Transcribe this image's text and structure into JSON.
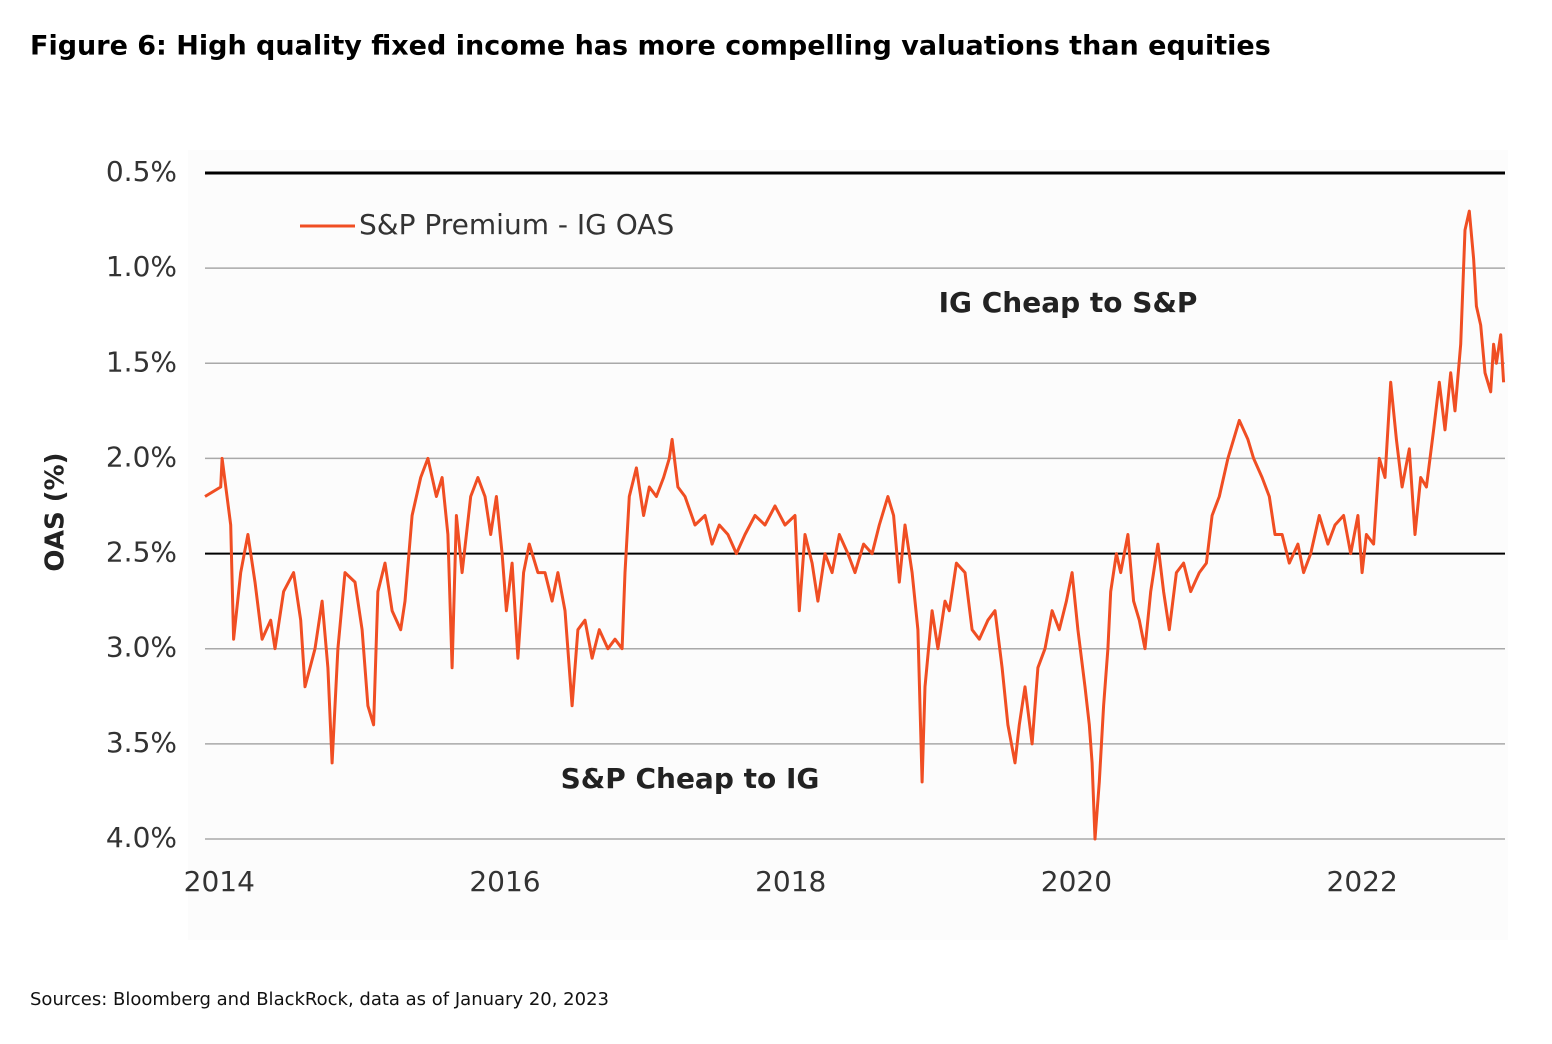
{
  "chart_data": {
    "type": "line",
    "title": "Figure 6: High quality fixed income has more compelling valuations than equities",
    "source": "Sources: Bloomberg and BlackRock, data as of January 20, 2023",
    "y_label": "OAS (%)",
    "annotations": [
      "IG Cheap to S&P",
      "S&P Cheap to IG"
    ],
    "xlim": [
      2013.9,
      2023.0
    ],
    "xticks": [
      2014,
      2016,
      2018,
      2020,
      2022
    ],
    "ylim": [
      0.5,
      4.0
    ],
    "y_inverted": true,
    "yticks": [
      {
        "value": 0.5,
        "label": "0.5%"
      },
      {
        "value": 1.0,
        "label": "1.0%"
      },
      {
        "value": 1.5,
        "label": "1.5%"
      },
      {
        "value": 2.0,
        "label": "2.0%"
      },
      {
        "value": 2.5,
        "label": "2.5%"
      },
      {
        "value": 3.0,
        "label": "3.0%"
      },
      {
        "value": 3.5,
        "label": "3.5%"
      },
      {
        "value": 4.0,
        "label": "4.0%"
      }
    ],
    "reference_line": 2.5,
    "grid": true,
    "legend": "top-left",
    "x": [
      2013.9,
      2014.01,
      2014.02,
      2014.08,
      2014.1,
      2014.15,
      2014.2,
      2014.25,
      2014.3,
      2014.36,
      2014.39,
      2014.45,
      2014.52,
      2014.57,
      2014.6,
      2014.67,
      2014.72,
      2014.76,
      2014.79,
      2014.83,
      2014.88,
      2014.95,
      2015.0,
      2015.04,
      2015.08,
      2015.11,
      2015.16,
      2015.21,
      2015.27,
      2015.3,
      2015.35,
      2015.41,
      2015.46,
      2015.52,
      2015.56,
      2015.6,
      2015.63,
      2015.66,
      2015.7,
      2015.76,
      2015.81,
      2015.86,
      2015.9,
      2015.94,
      2015.98,
      2016.01,
      2016.05,
      2016.09,
      2016.13,
      2016.17,
      2016.23,
      2016.28,
      2016.33,
      2016.37,
      2016.42,
      2016.47,
      2016.51,
      2016.56,
      2016.61,
      2016.66,
      2016.72,
      2016.77,
      2016.82,
      2016.84,
      2016.87,
      2016.92,
      2016.97,
      2017.01,
      2017.06,
      2017.11,
      2017.15,
      2017.17,
      2017.21,
      2017.26,
      2017.33,
      2017.4,
      2017.45,
      2017.5,
      2017.56,
      2017.62,
      2017.68,
      2017.75,
      2017.82,
      2017.89,
      2017.96,
      2018.03,
      2018.06,
      2018.1,
      2018.15,
      2018.19,
      2018.24,
      2018.29,
      2018.34,
      2018.4,
      2018.45,
      2018.51,
      2018.57,
      2018.62,
      2018.68,
      2018.72,
      2018.76,
      2018.8,
      2018.85,
      2018.89,
      2018.92,
      2018.94,
      2018.99,
      2019.03,
      2019.08,
      2019.11,
      2019.16,
      2019.22,
      2019.27,
      2019.32,
      2019.38,
      2019.43,
      2019.48,
      2019.52,
      2019.57,
      2019.6,
      2019.64,
      2019.69,
      2019.73,
      2019.78,
      2019.83,
      2019.88,
      2019.93,
      2019.97,
      2020.01,
      2020.06,
      2020.09,
      2020.11,
      2020.13,
      2020.16,
      2020.19,
      2020.22,
      2020.24,
      2020.28,
      2020.31,
      2020.36,
      2020.4,
      2020.44,
      2020.48,
      2020.52,
      2020.57,
      2020.61,
      2020.65,
      2020.7,
      2020.75,
      2020.8,
      2020.86,
      2020.91,
      2020.95,
      2021.0,
      2021.06,
      2021.1,
      2021.14,
      2021.2,
      2021.24,
      2021.3,
      2021.35,
      2021.39,
      2021.44,
      2021.49,
      2021.55,
      2021.59,
      2021.64,
      2021.7,
      2021.76,
      2021.81,
      2021.87,
      2021.92,
      2021.97,
      2022.0,
      2022.03,
      2022.08,
      2022.12,
      2022.16,
      2022.2,
      2022.24,
      2022.28,
      2022.33,
      2022.37,
      2022.41,
      2022.45,
      2022.5,
      2022.54,
      2022.58,
      2022.62,
      2022.65,
      2022.69,
      2022.72,
      2022.75,
      2022.78,
      2022.8,
      2022.83,
      2022.86,
      2022.9,
      2022.92,
      2022.94,
      2022.97,
      2022.99
    ],
    "series": [
      {
        "name": "S&P Premium - IG OAS",
        "color": "#f04e23",
        "values": [
          2.2,
          2.15,
          2.0,
          2.35,
          2.95,
          2.6,
          2.4,
          2.65,
          2.95,
          2.85,
          3.0,
          2.7,
          2.6,
          2.85,
          3.2,
          3.0,
          2.75,
          3.1,
          3.6,
          3.0,
          2.6,
          2.65,
          2.9,
          3.3,
          3.4,
          2.7,
          2.55,
          2.8,
          2.9,
          2.75,
          2.3,
          2.1,
          2.0,
          2.2,
          2.1,
          2.4,
          3.1,
          2.3,
          2.6,
          2.2,
          2.1,
          2.2,
          2.4,
          2.2,
          2.5,
          2.8,
          2.55,
          3.05,
          2.6,
          2.45,
          2.6,
          2.6,
          2.75,
          2.6,
          2.8,
          3.3,
          2.9,
          2.85,
          3.05,
          2.9,
          3.0,
          2.95,
          3.0,
          2.6,
          2.2,
          2.05,
          2.3,
          2.15,
          2.2,
          2.1,
          2.0,
          1.9,
          2.15,
          2.2,
          2.35,
          2.3,
          2.45,
          2.35,
          2.4,
          2.5,
          2.4,
          2.3,
          2.35,
          2.25,
          2.35,
          2.3,
          2.8,
          2.4,
          2.55,
          2.75,
          2.5,
          2.6,
          2.4,
          2.5,
          2.6,
          2.45,
          2.5,
          2.35,
          2.2,
          2.3,
          2.65,
          2.35,
          2.6,
          2.9,
          3.7,
          3.2,
          2.8,
          3.0,
          2.75,
          2.8,
          2.55,
          2.6,
          2.9,
          2.95,
          2.85,
          2.8,
          3.1,
          3.4,
          3.6,
          3.4,
          3.2,
          3.5,
          3.1,
          3.0,
          2.8,
          2.9,
          2.75,
          2.6,
          2.9,
          3.2,
          3.4,
          3.6,
          4.0,
          3.7,
          3.3,
          3.0,
          2.7,
          2.5,
          2.6,
          2.4,
          2.75,
          2.85,
          3.0,
          2.7,
          2.45,
          2.7,
          2.9,
          2.6,
          2.55,
          2.7,
          2.6,
          2.55,
          2.3,
          2.2,
          2.0,
          1.9,
          1.8,
          1.9,
          2.0,
          2.1,
          2.2,
          2.4,
          2.4,
          2.55,
          2.45,
          2.6,
          2.5,
          2.3,
          2.45,
          2.35,
          2.3,
          2.5,
          2.3,
          2.6,
          2.4,
          2.45,
          2.0,
          2.1,
          1.6,
          1.9,
          2.15,
          1.95,
          2.4,
          2.1,
          2.15,
          1.85,
          1.6,
          1.85,
          1.55,
          1.75,
          1.4,
          0.8,
          0.7,
          0.95,
          1.2,
          1.3,
          1.55,
          1.65,
          1.4,
          1.5,
          1.35,
          1.6
        ]
      }
    ]
  }
}
